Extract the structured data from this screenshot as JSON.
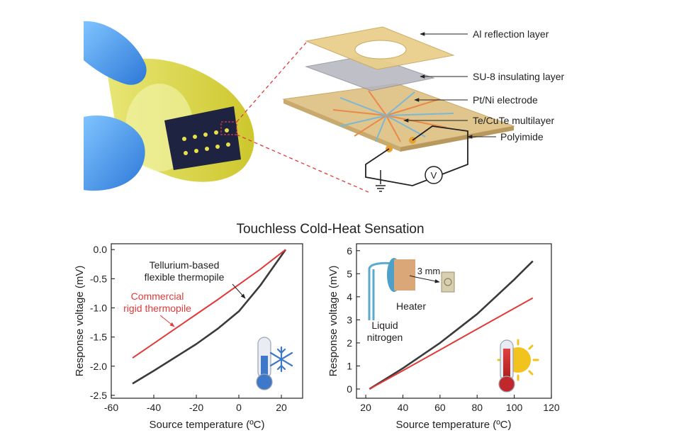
{
  "figure_title": "Touchless Cold-Heat Sensation",
  "layers": {
    "al": "Al reflection layer",
    "su8": "SU-8 insulating layer",
    "electrode": "Pt/Ni electrode",
    "multilayer": "Te/CuTe multilayer",
    "polyimide": "Polyimide"
  },
  "meter_symbol": "V",
  "inset": {
    "distance": "3 mm",
    "heater": "Heater",
    "nitrogen_line1": "Liquid",
    "nitrogen_line2": "nitrogen"
  },
  "colors": {
    "flexible": "#3a3a3a",
    "commercial": "#e23a3a",
    "hot": "#c0282b",
    "cold": "#3f78c8",
    "sun": "#f2c31c"
  },
  "chart_data": [
    {
      "type": "line",
      "xlabel": "Source temperature (ºC)",
      "ylabel": "Response voltage (mV)",
      "xlim": [
        -60,
        30
      ],
      "ylim": [
        -2.55,
        0.1
      ],
      "xticks": [
        -60,
        -40,
        -20,
        0,
        20
      ],
      "yticks": [
        0.0,
        -0.5,
        -1.0,
        -1.5,
        -2.0,
        -2.5
      ],
      "ytick_labels": [
        "0.0",
        "-0.5",
        "-1.0",
        "-1.5",
        "-2.0",
        "-2.5"
      ],
      "series": [
        {
          "name": "Tellurium-based flexible thermopile",
          "color": "#3a3a3a",
          "x": [
            -50,
            -40,
            -30,
            -20,
            -10,
            0,
            10,
            22
          ],
          "y": [
            -2.3,
            -2.08,
            -1.85,
            -1.62,
            -1.36,
            -1.06,
            -0.62,
            0.0
          ]
        },
        {
          "name": "Commercial rigid thermopile",
          "color": "#e23a3a",
          "x": [
            -50,
            -40,
            -30,
            -20,
            -10,
            0,
            10,
            22
          ],
          "y": [
            -1.86,
            -1.61,
            -1.36,
            -1.11,
            -0.86,
            -0.6,
            -0.34,
            0.0
          ]
        }
      ],
      "annotations": [
        {
          "line1": "Tellurium-based",
          "line2": "flexible thermopile",
          "color": "#222"
        },
        {
          "line1": "Commercial",
          "line2": "rigid thermopile",
          "color": "#e23a3a"
        }
      ]
    },
    {
      "type": "line",
      "xlabel": "Source temperature (ºC)",
      "ylabel": "Response voltage (mV)",
      "xlim": [
        15,
        120
      ],
      "ylim": [
        -0.4,
        6.3
      ],
      "xticks": [
        20,
        40,
        60,
        80,
        100,
        120
      ],
      "yticks": [
        0,
        1,
        2,
        3,
        4,
        5,
        6
      ],
      "series": [
        {
          "name": "Tellurium-based flexible thermopile",
          "color": "#3a3a3a",
          "x": [
            22,
            40,
            60,
            80,
            100,
            110
          ],
          "y": [
            0.0,
            0.9,
            2.0,
            3.25,
            4.75,
            5.55
          ]
        },
        {
          "name": "Commercial rigid thermopile",
          "color": "#e23a3a",
          "x": [
            22,
            40,
            60,
            80,
            100,
            110
          ],
          "y": [
            0.0,
            0.8,
            1.7,
            2.6,
            3.5,
            3.95
          ]
        }
      ]
    }
  ]
}
